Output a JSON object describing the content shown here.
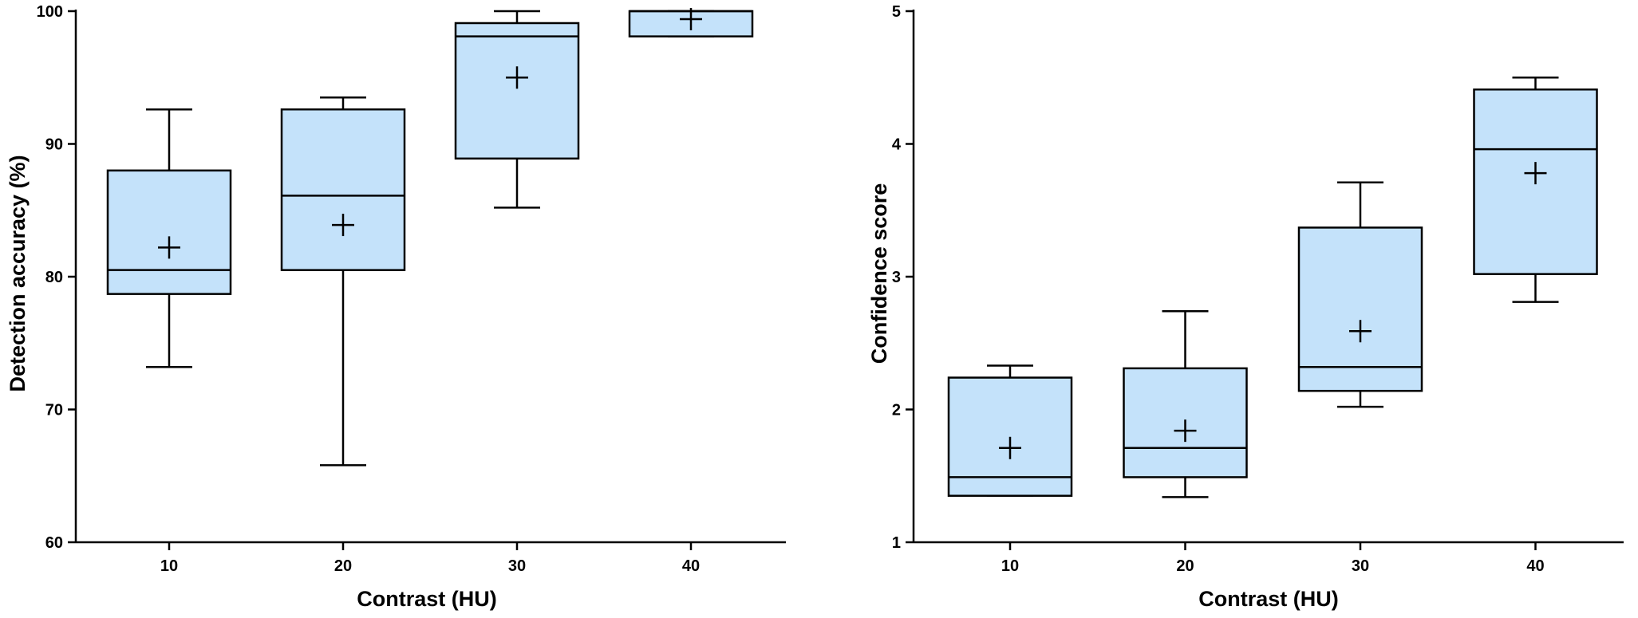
{
  "colors": {
    "box_fill": "#c4e2fa",
    "stroke": "#000000",
    "background": "#ffffff"
  },
  "chart_data": [
    {
      "type": "box",
      "title": "",
      "xlabel": "Contrast (HU)",
      "ylabel": "Detection accuracy (%)",
      "categories": [
        "10",
        "20",
        "30",
        "40"
      ],
      "ylim": [
        60,
        100
      ],
      "yticks": [
        60,
        70,
        80,
        90,
        100
      ],
      "grid": false,
      "legend": "none",
      "boxes": [
        {
          "category": "10",
          "min": 73.2,
          "q1": 78.7,
          "median": 80.5,
          "q3": 88.0,
          "max": 92.6,
          "mean": 82.2
        },
        {
          "category": "20",
          "min": 65.8,
          "q1": 80.5,
          "median": 86.1,
          "q3": 92.6,
          "max": 93.5,
          "mean": 83.9
        },
        {
          "category": "30",
          "min": 85.2,
          "q1": 88.9,
          "median": 98.1,
          "q3": 99.1,
          "max": 100.0,
          "mean": 95.0
        },
        {
          "category": "40",
          "min": 98.1,
          "q1": 98.1,
          "median": 100.0,
          "q3": 100.0,
          "max": 100.0,
          "mean": 99.4
        }
      ]
    },
    {
      "type": "box",
      "title": "",
      "xlabel": "Contrast (HU)",
      "ylabel": "Confidence score",
      "categories": [
        "10",
        "20",
        "30",
        "40"
      ],
      "ylim": [
        1,
        5
      ],
      "yticks": [
        1,
        2,
        3,
        4,
        5
      ],
      "grid": false,
      "legend": "none",
      "boxes": [
        {
          "category": "10",
          "min": 1.35,
          "q1": 1.35,
          "median": 1.49,
          "q3": 2.24,
          "max": 2.33,
          "mean": 1.71
        },
        {
          "category": "20",
          "min": 1.34,
          "q1": 1.49,
          "median": 1.71,
          "q3": 2.31,
          "max": 2.74,
          "mean": 1.84
        },
        {
          "category": "30",
          "min": 2.02,
          "q1": 2.14,
          "median": 2.32,
          "q3": 3.37,
          "max": 3.71,
          "mean": 2.59
        },
        {
          "category": "40",
          "min": 2.81,
          "q1": 3.02,
          "median": 3.96,
          "q3": 4.41,
          "max": 4.5,
          "mean": 3.78
        }
      ]
    }
  ]
}
